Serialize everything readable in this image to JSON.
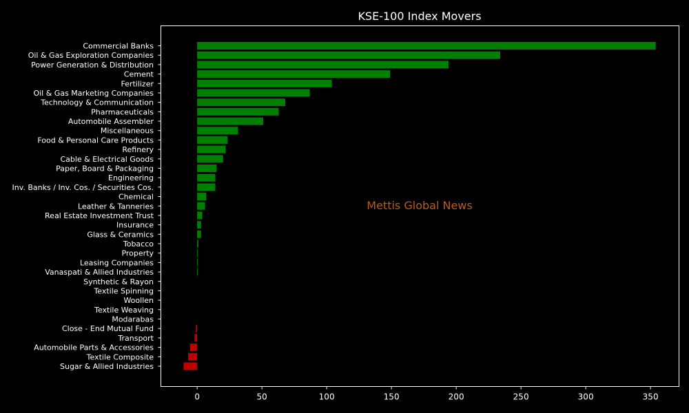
{
  "chart_data": {
    "type": "bar",
    "orientation": "horizontal",
    "title": "KSE-100 Index Movers",
    "xlabel": "",
    "ylabel": "",
    "xlim": [
      -28,
      372
    ],
    "xticks": [
      0,
      50,
      100,
      150,
      200,
      250,
      300,
      350
    ],
    "grid": false,
    "categories": [
      "Commercial Banks",
      "Oil & Gas Exploration Companies",
      "Power Generation & Distribution",
      "Cement",
      "Fertilizer",
      "Oil & Gas Marketing Companies",
      "Technology & Communication",
      "Pharmaceuticals",
      "Automobile Assembler",
      "Miscellaneous",
      "Food & Personal Care Products",
      "Refinery",
      "Cable & Electrical Goods",
      "Paper, Board & Packaging",
      "Engineering",
      "Inv. Banks / Inv. Cos. / Securities Cos.",
      "Chemical",
      "Leather & Tanneries",
      "Real Estate Investment Trust",
      "Insurance",
      "Glass & Ceramics",
      "Tobacco",
      "Property",
      "Leasing Companies",
      "Vanaspati & Allied Industries",
      "Synthetic & Rayon",
      "Textile Spinning",
      "Woollen",
      "Textile Weaving",
      "Modarabas",
      "Close - End Mutual Fund",
      "Transport",
      "Automobile Parts & Accessories",
      "Textile Composite",
      "Sugar & Allied Industries"
    ],
    "values": [
      354,
      234,
      194,
      149,
      104,
      87,
      68,
      63,
      51,
      31.5,
      23.5,
      22,
      20,
      15,
      14,
      14,
      7,
      6,
      4,
      3,
      3,
      1,
      0.5,
      0.5,
      0.5,
      0,
      0,
      0,
      0,
      0,
      -1,
      -2,
      -5.5,
      -7,
      -10.5
    ]
  },
  "watermark": "Mettis Global News",
  "colors": {
    "background": "#000000",
    "positive": "#008000",
    "negative": "#bf0000",
    "text": "#ffffff",
    "axes": "#ffffff",
    "watermark": "#b85c1f"
  }
}
